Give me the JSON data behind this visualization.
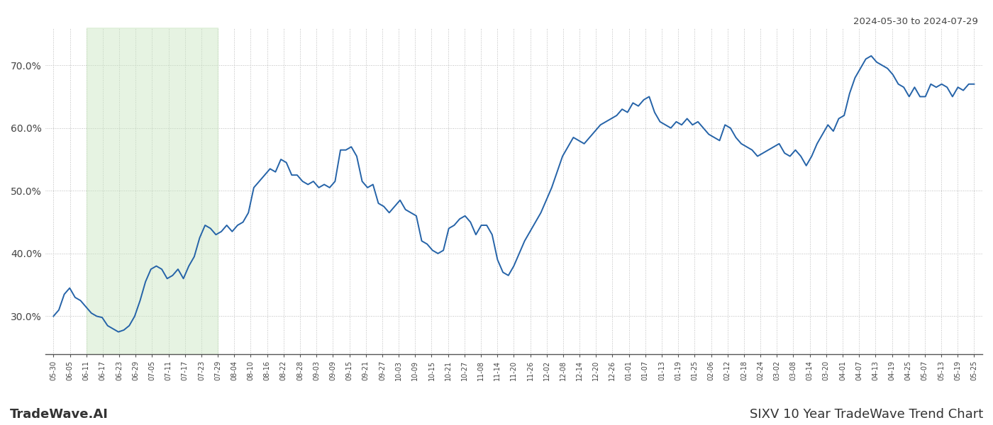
{
  "title_top_right": "2024-05-30 to 2024-07-29",
  "title_bottom_left": "TradeWave.AI",
  "title_bottom_right": "SIXV 10 Year TradeWave Trend Chart",
  "line_color": "#2563a8",
  "line_width": 1.4,
  "background_color": "#ffffff",
  "shaded_region_color": "#c8e6c0",
  "shaded_region_alpha": 0.45,
  "grid_color": "#bbbbbb",
  "ylim": [
    24,
    76
  ],
  "yticks": [
    30,
    40,
    50,
    60,
    70
  ],
  "ytick_labels": [
    "30.0%",
    "40.0%",
    "50.0%",
    "60.0%",
    "70.0%"
  ],
  "x_labels": [
    "05-30",
    "06-05",
    "06-11",
    "06-17",
    "06-23",
    "06-29",
    "07-05",
    "07-11",
    "07-17",
    "07-23",
    "07-29",
    "08-04",
    "08-10",
    "08-16",
    "08-22",
    "08-28",
    "09-03",
    "09-09",
    "09-15",
    "09-21",
    "09-27",
    "10-03",
    "10-09",
    "10-15",
    "10-21",
    "10-27",
    "11-08",
    "11-14",
    "11-20",
    "11-26",
    "12-02",
    "12-08",
    "12-14",
    "12-20",
    "12-26",
    "01-01",
    "01-07",
    "01-13",
    "01-19",
    "01-25",
    "02-06",
    "02-12",
    "02-18",
    "02-24",
    "03-02",
    "03-08",
    "03-14",
    "03-20",
    "04-01",
    "04-07",
    "04-13",
    "04-19",
    "04-25",
    "05-07",
    "05-13",
    "05-19",
    "05-25"
  ],
  "shade_start_label": "06-11",
  "shade_end_label": "07-29",
  "values": [
    30.0,
    31.0,
    33.5,
    34.5,
    33.0,
    32.5,
    31.5,
    30.5,
    30.0,
    29.8,
    28.5,
    28.0,
    27.5,
    27.8,
    28.5,
    30.0,
    32.5,
    35.5,
    37.5,
    38.0,
    37.5,
    36.0,
    36.5,
    37.5,
    36.0,
    38.0,
    39.5,
    42.5,
    44.5,
    44.0,
    43.0,
    43.5,
    44.5,
    43.5,
    44.5,
    45.0,
    46.5,
    50.5,
    51.5,
    52.5,
    53.5,
    53.0,
    55.0,
    54.5,
    52.5,
    52.5,
    51.5,
    51.0,
    51.5,
    50.5,
    51.0,
    50.5,
    51.5,
    56.5,
    56.5,
    57.0,
    55.5,
    51.5,
    50.5,
    51.0,
    48.0,
    47.5,
    46.5,
    47.5,
    48.5,
    47.0,
    46.5,
    46.0,
    42.0,
    41.5,
    40.5,
    40.0,
    40.5,
    44.0,
    44.5,
    45.5,
    46.0,
    45.0,
    43.0,
    44.5,
    44.5,
    43.0,
    39.0,
    37.0,
    36.5,
    38.0,
    40.0,
    42.0,
    43.5,
    45.0,
    46.5,
    48.5,
    50.5,
    53.0,
    55.5,
    57.0,
    58.5,
    58.0,
    57.5,
    58.5,
    59.5,
    60.5,
    61.0,
    61.5,
    62.0,
    63.0,
    62.5,
    64.0,
    63.5,
    64.5,
    65.0,
    62.5,
    61.0,
    60.5,
    60.0,
    61.0,
    60.5,
    61.5,
    60.5,
    61.0,
    60.0,
    59.0,
    58.5,
    58.0,
    60.5,
    60.0,
    58.5,
    57.5,
    57.0,
    56.5,
    55.5,
    56.0,
    56.5,
    57.0,
    57.5,
    56.0,
    55.5,
    56.5,
    55.5,
    54.0,
    55.5,
    57.5,
    59.0,
    60.5,
    59.5,
    61.5,
    62.0,
    65.5,
    68.0,
    69.5,
    71.0,
    71.5,
    70.5,
    70.0,
    69.5,
    68.5,
    67.0,
    66.5,
    65.0,
    66.5,
    65.0,
    65.0,
    67.0,
    66.5,
    67.0,
    66.5,
    65.0,
    66.5,
    66.0,
    67.0,
    67.0
  ]
}
